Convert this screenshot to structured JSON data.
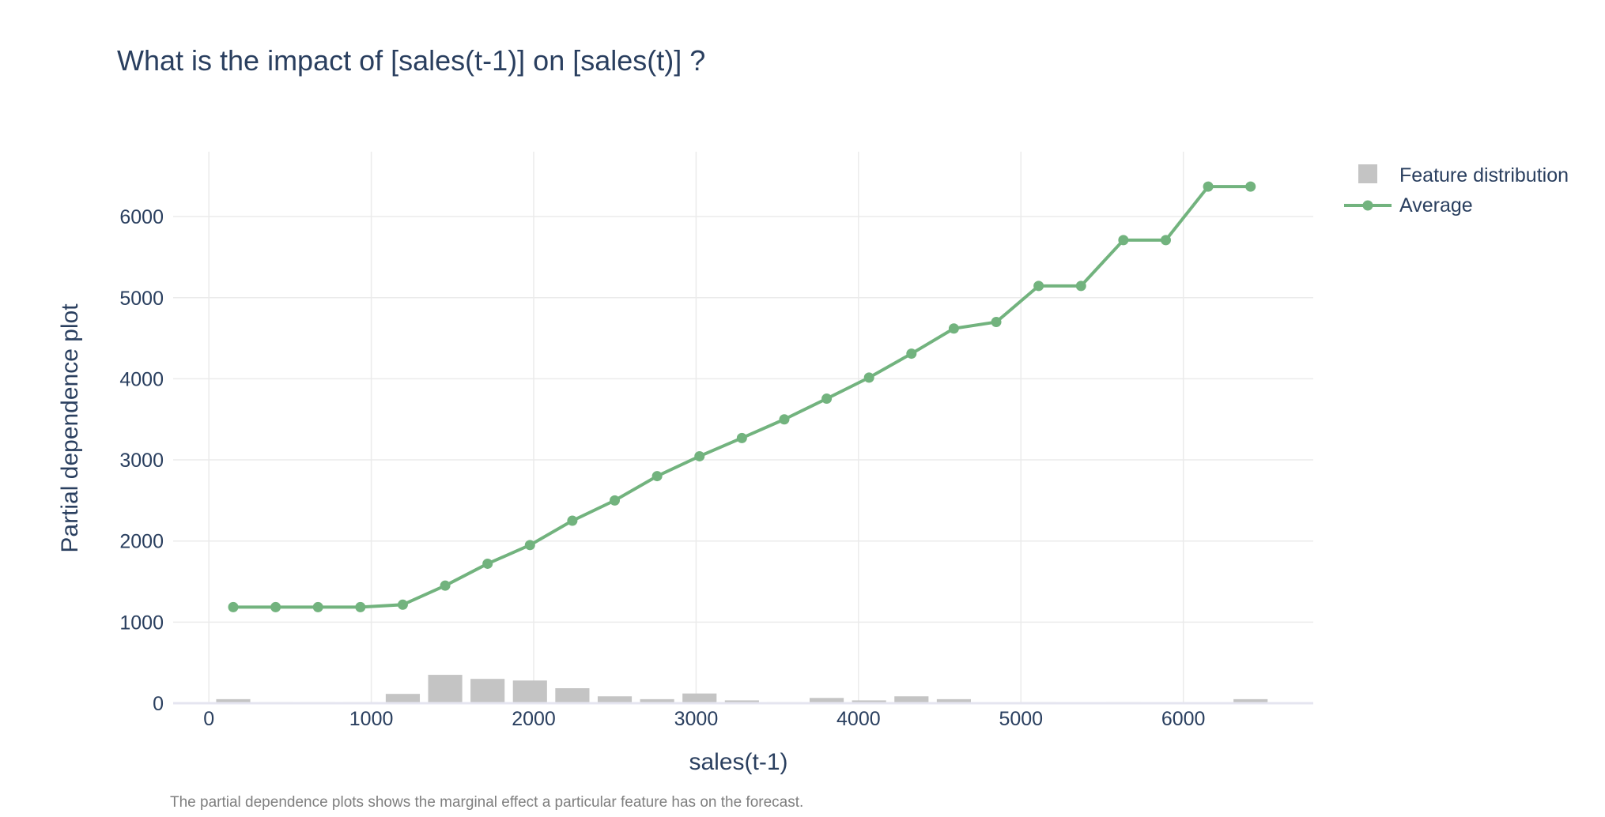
{
  "chart_data": {
    "type": "bar+line",
    "title": "What is the impact of [sales(t-1)] on [sales(t)] ?",
    "xlabel": "sales(t-1)",
    "ylabel": "Partial dependence plot",
    "caption": "The partial dependence plots shows the marginal effect a particular feature has on the forecast.",
    "xlim": [
      -220,
      6800
    ],
    "ylim": [
      0,
      6800
    ],
    "x_ticks": [
      0,
      1000,
      2000,
      3000,
      4000,
      5000,
      6000
    ],
    "y_ticks": [
      0,
      1000,
      2000,
      3000,
      4000,
      5000,
      6000
    ],
    "grid": true,
    "legend_position": "top-right",
    "colors": {
      "average": "#72b37e",
      "feature_distribution": "#c4c4c4",
      "text": "#2a3f5f",
      "caption": "#7f7f7f"
    },
    "series": [
      {
        "name": "Feature distribution",
        "kind": "bar",
        "bar_width": 210,
        "x": [
          150,
          411,
          672,
          933,
          1194,
          1455,
          1716,
          1977,
          2238,
          2499,
          2760,
          3021,
          3282,
          3543,
          3804,
          4065,
          4326,
          4587,
          4848,
          5109,
          5370,
          5631,
          5892,
          6153,
          6414
        ],
        "values": [
          50,
          15,
          15,
          15,
          115,
          350,
          300,
          280,
          185,
          85,
          50,
          120,
          35,
          15,
          65,
          35,
          85,
          50,
          0,
          15,
          0,
          15,
          0,
          0,
          50
        ]
      },
      {
        "name": "Average",
        "kind": "line",
        "x": [
          150,
          411,
          672,
          933,
          1194,
          1455,
          1716,
          1977,
          2238,
          2499,
          2760,
          3021,
          3282,
          3543,
          3804,
          4065,
          4326,
          4587,
          4848,
          5109,
          5370,
          5631,
          5892,
          6153,
          6414
        ],
        "values": [
          1185,
          1185,
          1185,
          1185,
          1215,
          1450,
          1720,
          1950,
          2250,
          2500,
          2800,
          3045,
          3270,
          3500,
          3755,
          4015,
          4310,
          4620,
          4700,
          5145,
          5145,
          5710,
          5710,
          6370,
          6370
        ]
      }
    ]
  }
}
